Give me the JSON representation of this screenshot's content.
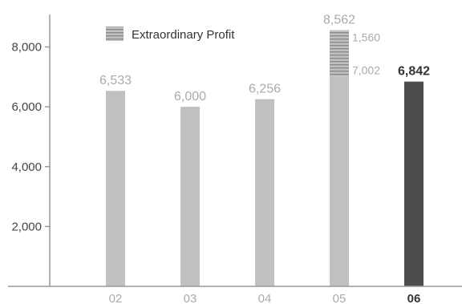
{
  "chart_data": {
    "type": "bar",
    "categories": [
      "02",
      "03",
      "04",
      "05",
      "06"
    ],
    "values": [
      6533,
      6000,
      6256,
      8562,
      6842
    ],
    "value_labels": [
      "6,533",
      "6,000",
      "6,256",
      "8,562",
      "6,842"
    ],
    "highlight_index": 4,
    "stacked_detail": {
      "category": "05",
      "base_value": 7002,
      "base_label": "7,002",
      "extra_value": 1560,
      "extra_label": "1,560"
    },
    "legend": {
      "label": "Extraordinary Profit",
      "placement": "top-left"
    },
    "y_ticks": [
      2000,
      4000,
      6000,
      8000
    ],
    "y_tick_labels": [
      "2,000",
      "4,000",
      "6,000",
      "8,000"
    ],
    "ylim": [
      0,
      9300
    ],
    "grid": false,
    "colors": {
      "bar": "#c0c0c0",
      "bar_highlight": "#4d4d4d",
      "stripe": "#8a8a8a",
      "axis": "#999999"
    }
  }
}
